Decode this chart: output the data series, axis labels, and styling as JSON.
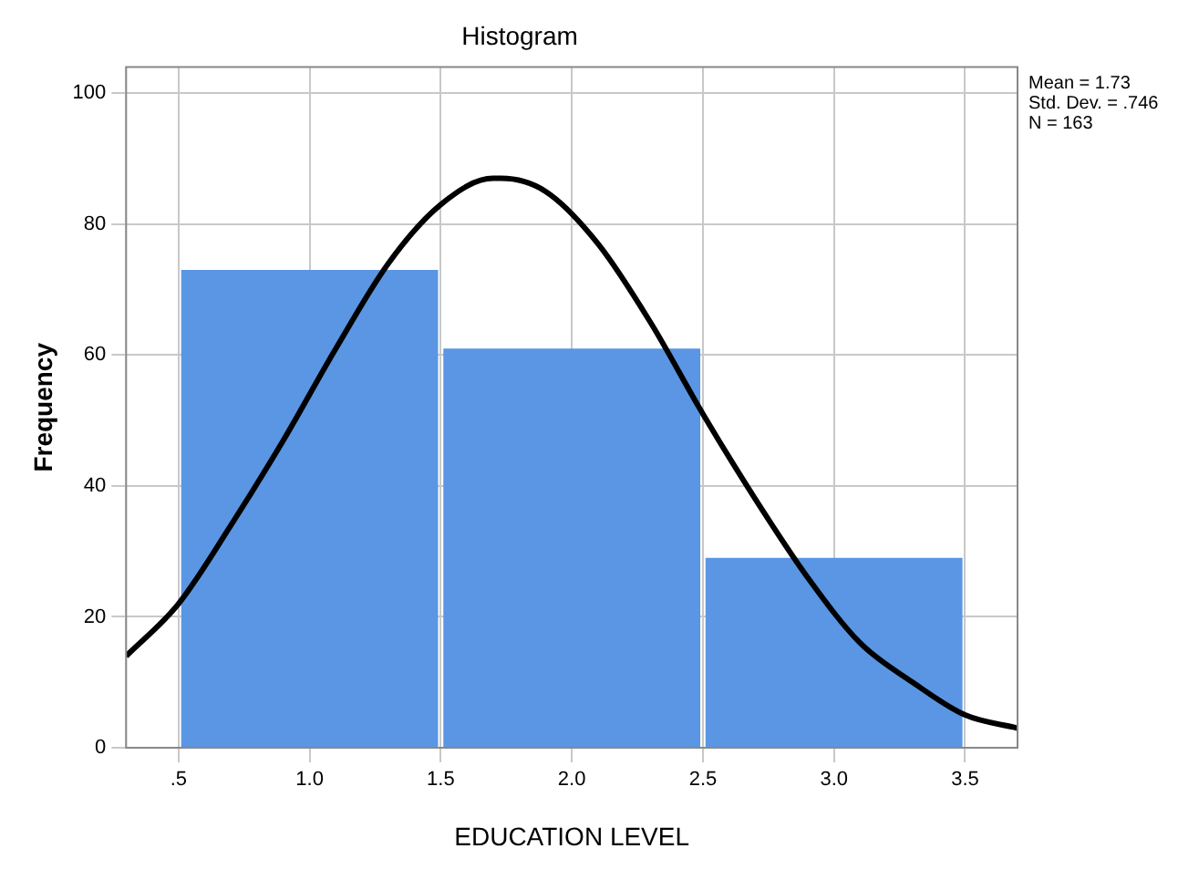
{
  "chart_data": {
    "type": "histogram",
    "title": "Histogram",
    "xlabel": "EDUCATION LEVEL",
    "ylabel": "Frequency",
    "bins": [
      0.5,
      1.5,
      2.5,
      3.5
    ],
    "values": [
      73,
      61,
      29
    ],
    "color": "#5a96e3",
    "series": [
      {
        "type": "line",
        "color": "#000000",
        "x": [
          0.3,
          0.5,
          0.7,
          0.9,
          1.1,
          1.3,
          1.5,
          1.7,
          1.73,
          1.9,
          2.1,
          2.3,
          2.5,
          2.7,
          2.9,
          3.1,
          3.3,
          3.5,
          3.7
        ],
        "values": [
          14,
          22,
          34,
          47,
          61,
          74,
          83,
          87,
          87,
          85,
          77,
          65,
          51,
          38,
          26,
          16,
          10,
          5,
          3
        ]
      }
    ],
    "xlim": [
      0.3,
      3.7
    ],
    "xticks": [
      {
        "value": 0.5,
        "label": ".5"
      },
      {
        "value": 1,
        "label": "1.0"
      },
      {
        "value": 1.5,
        "label": "1.5"
      },
      {
        "value": 2,
        "label": "2.0"
      },
      {
        "value": 2.5,
        "label": "2.5"
      },
      {
        "value": 3,
        "label": "3.0"
      },
      {
        "value": 3.5,
        "label": "3.5"
      }
    ],
    "ylim": [
      0,
      104
    ],
    "yticks": [
      0,
      20,
      40,
      60,
      80,
      100
    ],
    "grid": true,
    "legend": false,
    "marker": "none",
    "annotations": [
      "Mean = 1.73",
      "Std. Dev. = .746",
      "N = 163"
    ]
  }
}
